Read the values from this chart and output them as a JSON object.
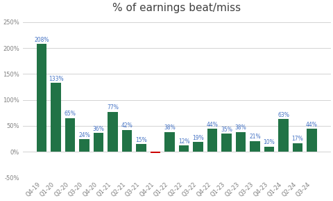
{
  "categories": [
    "Q4-19",
    "Q1-20",
    "Q2-20",
    "Q3-20",
    "Q4-20",
    "Q1-21",
    "Q2-21",
    "Q3-21",
    "Q4-21",
    "Q1-22",
    "Q2-22",
    "Q3-22",
    "Q4-22",
    "Q1-23",
    "Q2-23",
    "Q3-23",
    "Q4-23",
    "Q1-24",
    "Q2-24",
    "Q3-24"
  ],
  "values": [
    208,
    133,
    65,
    24,
    36,
    77,
    42,
    15,
    -3,
    38,
    12,
    19,
    44,
    35,
    38,
    21,
    10,
    63,
    17,
    44
  ],
  "bar_colors": [
    "#217346",
    "#217346",
    "#217346",
    "#217346",
    "#217346",
    "#217346",
    "#217346",
    "#217346",
    "#cc0000",
    "#217346",
    "#217346",
    "#217346",
    "#217346",
    "#217346",
    "#217346",
    "#217346",
    "#217346",
    "#217346",
    "#217346",
    "#217346"
  ],
  "show_labels": [
    1,
    1,
    1,
    1,
    1,
    1,
    1,
    1,
    0,
    1,
    1,
    1,
    1,
    1,
    1,
    1,
    1,
    1,
    1,
    1
  ],
  "title": "% of earnings beat/miss",
  "title_fontsize": 11,
  "title_color": "#404040",
  "label_fontsize": 5.5,
  "label_color": "#4472c4",
  "axis_label_color": "#808080",
  "axis_label_fontsize": 6,
  "ylim": [
    -50,
    260
  ],
  "yticks": [
    -50,
    0,
    50,
    100,
    150,
    200,
    250
  ],
  "ytick_labels": [
    "-50%",
    "0%",
    "50%",
    "100%",
    "150%",
    "200%",
    "250%"
  ],
  "background_color": "#ffffff",
  "grid_color": "#d3d3d3"
}
